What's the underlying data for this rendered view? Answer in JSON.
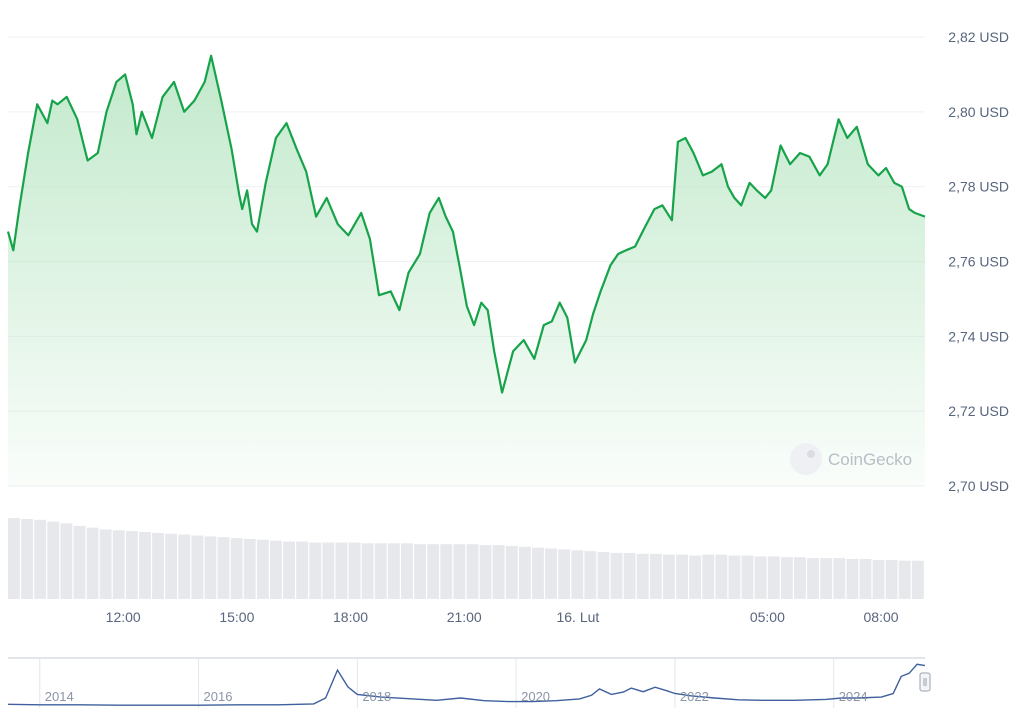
{
  "chart_data": {
    "type": "area",
    "title": "",
    "xlabel": "",
    "ylabel": "",
    "unit": "USD",
    "watermark": "CoinGecko",
    "colors": {
      "line": "#16a34a",
      "fill": "#bfe8c9",
      "volume": "#e6e8ec",
      "navigator": "#3f5f9e"
    },
    "ylim": [
      2.7,
      2.82
    ],
    "y_ticks": [
      "2,82 USD",
      "2,80 USD",
      "2,78 USD",
      "2,76 USD",
      "2,74 USD",
      "2,72 USD",
      "2,70 USD"
    ],
    "y_tick_values": [
      2.82,
      2.8,
      2.78,
      2.76,
      2.74,
      2.72,
      2.7
    ],
    "x_ticks": [
      "12:00",
      "15:00",
      "18:00",
      "21:00",
      "16. Lut",
      "05:00",
      "08:00"
    ],
    "x_tick_hours": [
      12,
      15,
      18,
      21,
      24,
      29,
      32
    ],
    "xlim_hours": [
      8.96,
      33.16
    ],
    "grid": true,
    "series": [
      {
        "x_hours": [
          8.96,
          9.1,
          9.27,
          9.49,
          9.73,
          10.0,
          10.13,
          10.27,
          10.51,
          10.79,
          11.06,
          11.33,
          11.56,
          11.82,
          12.05,
          12.25,
          12.35,
          12.49,
          12.76,
          13.04,
          13.34,
          13.61,
          13.88,
          14.15,
          14.32,
          14.59,
          14.86,
          15.06,
          15.14,
          15.27,
          15.4,
          15.53,
          15.76,
          16.03,
          16.31,
          16.58,
          16.83,
          17.09,
          17.37,
          17.66,
          17.94,
          18.28,
          18.51,
          18.75,
          19.06,
          19.29,
          19.53,
          19.83,
          20.09,
          20.33,
          20.51,
          20.7,
          20.89,
          21.07,
          21.26,
          21.45,
          21.62,
          21.79,
          22.0,
          22.29,
          22.57,
          22.85,
          23.1,
          23.31,
          23.52,
          23.72,
          23.92,
          24.22,
          24.4,
          24.6,
          24.86,
          25.06,
          25.27,
          25.51,
          25.76,
          26.02,
          26.23,
          26.48,
          26.64,
          26.84,
          27.05,
          27.3,
          27.53,
          27.79,
          27.96,
          28.13,
          28.31,
          28.53,
          28.72,
          28.94,
          29.1,
          29.35,
          29.6,
          29.86,
          30.11,
          30.38,
          30.59,
          30.88,
          31.11,
          31.36,
          31.65,
          31.93,
          32.13,
          32.35,
          32.55,
          32.74,
          32.89,
          33.16
        ],
        "values": [
          2.768,
          2.763,
          2.775,
          2.789,
          2.802,
          2.797,
          2.803,
          2.802,
          2.804,
          2.798,
          2.787,
          2.789,
          2.8,
          2.808,
          2.81,
          2.802,
          2.794,
          2.8,
          2.793,
          2.804,
          2.808,
          2.8,
          2.803,
          2.808,
          2.815,
          2.803,
          2.79,
          2.778,
          2.774,
          2.779,
          2.77,
          2.768,
          2.781,
          2.793,
          2.797,
          2.79,
          2.784,
          2.772,
          2.777,
          2.77,
          2.767,
          2.773,
          2.766,
          2.751,
          2.752,
          2.747,
          2.757,
          2.762,
          2.773,
          2.777,
          2.772,
          2.768,
          2.758,
          2.748,
          2.743,
          2.749,
          2.747,
          2.736,
          2.725,
          2.736,
          2.739,
          2.734,
          2.743,
          2.744,
          2.749,
          2.745,
          2.733,
          2.739,
          2.746,
          2.752,
          2.759,
          2.762,
          2.763,
          2.764,
          2.769,
          2.774,
          2.775,
          2.771,
          2.792,
          2.793,
          2.789,
          2.783,
          2.784,
          2.786,
          2.78,
          2.777,
          2.775,
          2.781,
          2.779,
          2.777,
          2.779,
          2.791,
          2.786,
          2.789,
          2.788,
          2.783,
          2.786,
          2.798,
          2.793,
          2.796,
          2.786,
          2.783,
          2.785,
          2.781,
          2.78,
          2.774,
          2.773,
          2.772
        ]
      }
    ],
    "volume": {
      "relative_values": [
        0.93,
        0.92,
        0.91,
        0.89,
        0.87,
        0.84,
        0.82,
        0.8,
        0.79,
        0.78,
        0.77,
        0.76,
        0.75,
        0.74,
        0.73,
        0.72,
        0.71,
        0.7,
        0.69,
        0.68,
        0.67,
        0.66,
        0.66,
        0.65,
        0.65,
        0.65,
        0.65,
        0.64,
        0.64,
        0.64,
        0.64,
        0.63,
        0.63,
        0.63,
        0.63,
        0.63,
        0.62,
        0.62,
        0.61,
        0.6,
        0.59,
        0.58,
        0.57,
        0.56,
        0.55,
        0.54,
        0.53,
        0.53,
        0.52,
        0.52,
        0.51,
        0.51,
        0.5,
        0.51,
        0.51,
        0.5,
        0.5,
        0.49,
        0.49,
        0.48,
        0.48,
        0.47,
        0.47,
        0.47,
        0.46,
        0.46,
        0.45,
        0.45,
        0.44,
        0.44
      ]
    },
    "navigator": {
      "x_ticks": [
        "2014",
        "2016",
        "2018",
        "2020",
        "2022",
        "2024"
      ],
      "x_tick_years": [
        2014,
        2016,
        2018,
        2020,
        2022,
        2024
      ],
      "xlim_years": [
        2013.6,
        2025.15
      ],
      "points": [
        [
          2013.6,
          0.06
        ],
        [
          2014.0,
          0.05
        ],
        [
          2014.5,
          0.05
        ],
        [
          2015.0,
          0.04
        ],
        [
          2015.5,
          0.04
        ],
        [
          2016.0,
          0.04
        ],
        [
          2016.5,
          0.05
        ],
        [
          2017.0,
          0.05
        ],
        [
          2017.45,
          0.07
        ],
        [
          2017.6,
          0.2
        ],
        [
          2017.75,
          0.82
        ],
        [
          2017.88,
          0.45
        ],
        [
          2018.0,
          0.28
        ],
        [
          2018.3,
          0.22
        ],
        [
          2018.7,
          0.18
        ],
        [
          2019.0,
          0.15
        ],
        [
          2019.3,
          0.2
        ],
        [
          2019.6,
          0.14
        ],
        [
          2019.9,
          0.12
        ],
        [
          2020.2,
          0.12
        ],
        [
          2020.5,
          0.14
        ],
        [
          2020.8,
          0.18
        ],
        [
          2020.95,
          0.26
        ],
        [
          2021.05,
          0.4
        ],
        [
          2021.2,
          0.28
        ],
        [
          2021.35,
          0.33
        ],
        [
          2021.45,
          0.42
        ],
        [
          2021.6,
          0.34
        ],
        [
          2021.75,
          0.44
        ],
        [
          2021.9,
          0.36
        ],
        [
          2022.0,
          0.3
        ],
        [
          2022.2,
          0.25
        ],
        [
          2022.5,
          0.2
        ],
        [
          2022.8,
          0.16
        ],
        [
          2023.1,
          0.15
        ],
        [
          2023.5,
          0.15
        ],
        [
          2023.9,
          0.17
        ],
        [
          2024.1,
          0.2
        ],
        [
          2024.3,
          0.2
        ],
        [
          2024.6,
          0.22
        ],
        [
          2024.75,
          0.3
        ],
        [
          2024.85,
          0.68
        ],
        [
          2024.95,
          0.75
        ],
        [
          2025.05,
          0.95
        ],
        [
          2025.15,
          0.92
        ]
      ]
    }
  }
}
